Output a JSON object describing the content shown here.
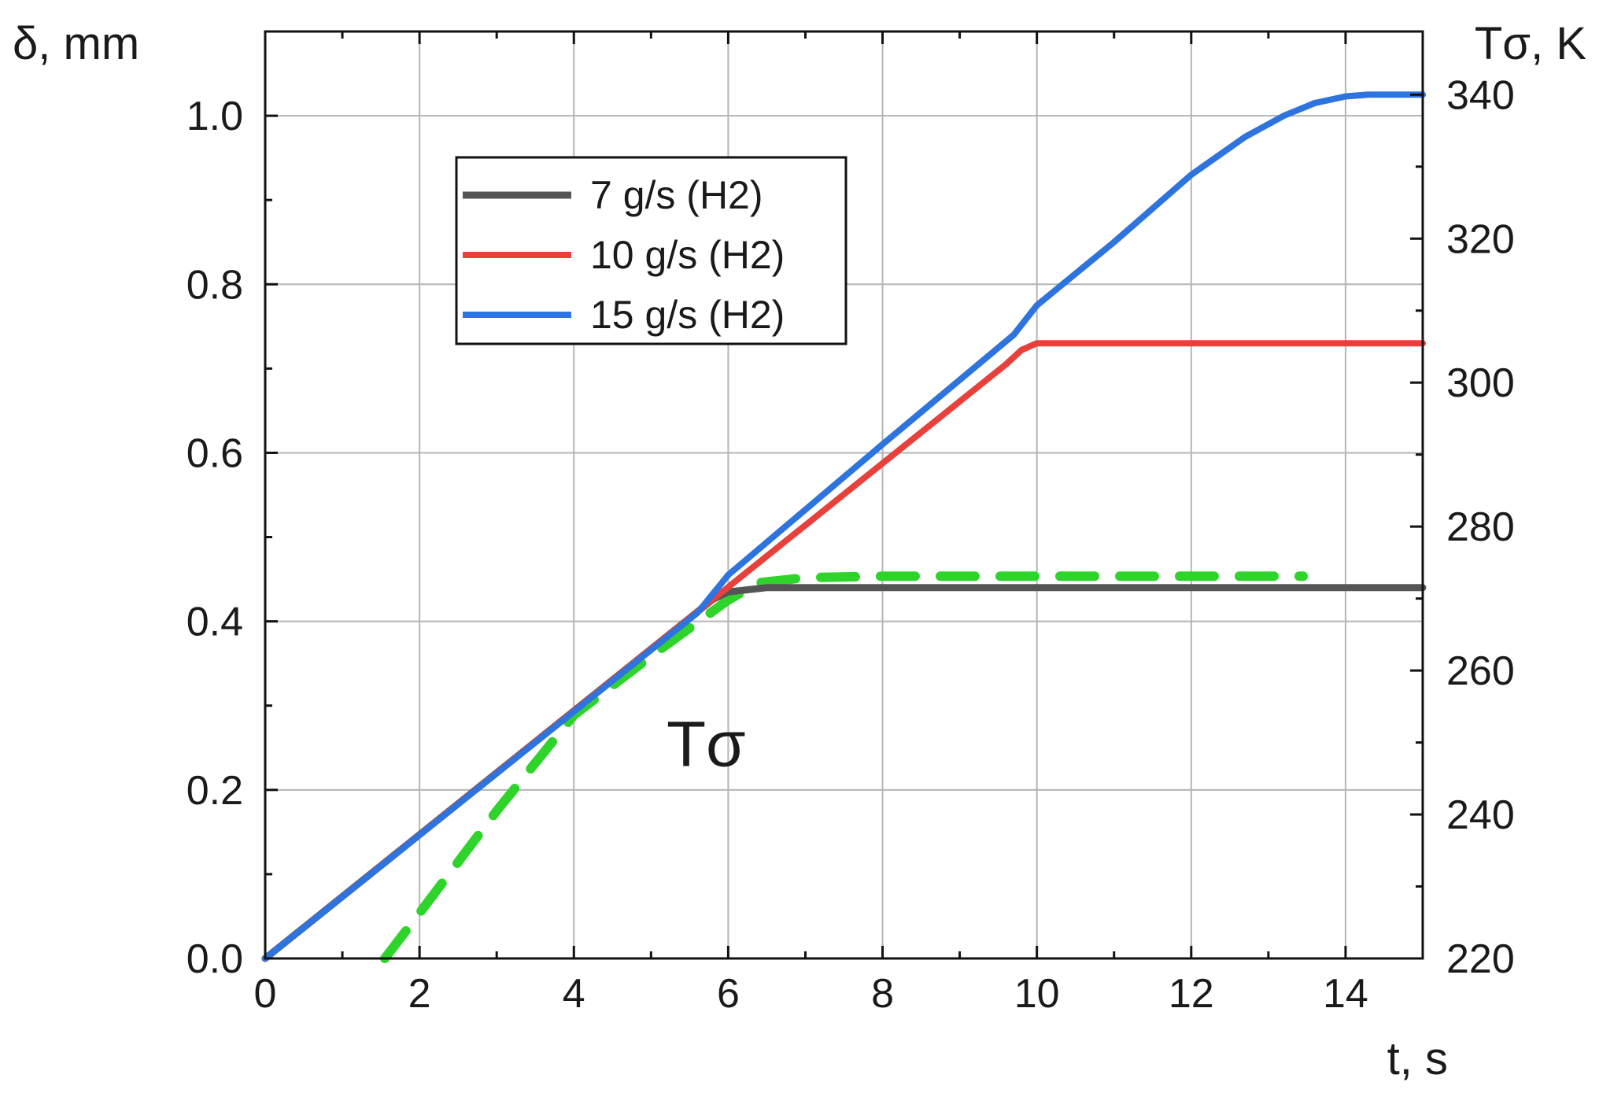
{
  "chart_data": {
    "type": "line",
    "xlabel": "t, s",
    "ylabel": "δ, mm",
    "y2label": "Tσ, K",
    "xlim": [
      0,
      15
    ],
    "ylim": [
      0,
      1.1
    ],
    "y2lim": [
      220,
      340
    ],
    "x_ticks": [
      "0",
      "2",
      "4",
      "6",
      "8",
      "10",
      "12",
      "14"
    ],
    "y_ticks": [
      "0.0",
      "0.2",
      "0.4",
      "0.6",
      "0.8",
      "1.0"
    ],
    "y2_ticks": [
      "220",
      "240",
      "260",
      "280",
      "300",
      "320",
      "340"
    ],
    "grid": true,
    "legend_position": "top-left",
    "colors": {
      "series_7": "#555555",
      "series_10": "#e8413b",
      "series_15": "#2e74de",
      "temperature": "#2ed42a",
      "grid": "#b5b5b5",
      "axis": "#111111"
    },
    "series": [
      {
        "name": "7 g/s (H2)",
        "axis": "left",
        "x": [
          0,
          5.8,
          6.0,
          6.5,
          7.0,
          8.0,
          10.0,
          12.0,
          14.0,
          15.0
        ],
        "y": [
          0,
          0.426,
          0.435,
          0.44,
          0.44,
          0.44,
          0.44,
          0.44,
          0.44,
          0.44
        ]
      },
      {
        "name": "10 g/s (H2)",
        "axis": "left",
        "x": [
          0,
          9.6,
          9.8,
          10.0,
          11.0,
          12.0,
          13.0,
          14.0,
          15.0
        ],
        "y": [
          0,
          0.705,
          0.722,
          0.73,
          0.73,
          0.73,
          0.73,
          0.73,
          0.73
        ]
      },
      {
        "name": "15 g/s (H2)",
        "axis": "left",
        "x": [
          0,
          5.6,
          6.0,
          8.0,
          9.7,
          10.0,
          11.0,
          12.0,
          12.7,
          13.2,
          13.6,
          14.0,
          14.3,
          14.6,
          15.0
        ],
        "y": [
          0,
          0.41,
          0.455,
          0.61,
          0.74,
          0.775,
          0.85,
          0.93,
          0.975,
          1.0,
          1.015,
          1.023,
          1.025,
          1.025,
          1.025
        ]
      },
      {
        "name": "Tσ",
        "axis": "right",
        "style": "dashed",
        "x": [
          1.55,
          2.0,
          3.0,
          4.0,
          5.0,
          6.0,
          6.4,
          7.0,
          8.0,
          9.0,
          10.0,
          11.0,
          12.0,
          13.0,
          13.45
        ],
        "y": [
          220,
          226.3,
          240.5,
          253.8,
          262.0,
          269.8,
          272.2,
          272.9,
          273.1,
          273.1,
          273.1,
          273.1,
          273.1,
          273.1,
          273.1
        ]
      }
    ],
    "annotations": [
      {
        "text": "Tσ",
        "x": 5.2,
        "y_right": 250
      }
    ]
  }
}
